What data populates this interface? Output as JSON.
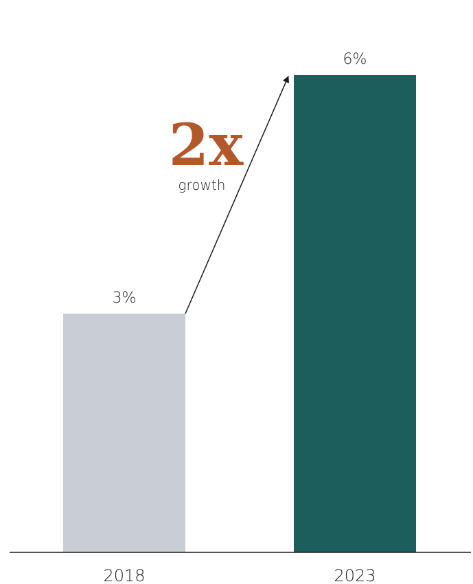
{
  "chart_data": {
    "type": "bar",
    "categories": [
      "2018",
      "2023"
    ],
    "values": [
      3,
      6
    ],
    "value_labels": [
      "3%",
      "6%"
    ],
    "title": "",
    "xlabel": "",
    "ylabel": "",
    "ylim": [
      0,
      6
    ],
    "grid": false,
    "legend": "none",
    "bar_colors": [
      "#c9cdd5",
      "#1b5e5b"
    ],
    "annotation": {
      "big_text": "2x",
      "small_text": "growth",
      "color": "#b2582a",
      "arrow": "from 2018 bar top to 2023 bar top"
    }
  }
}
